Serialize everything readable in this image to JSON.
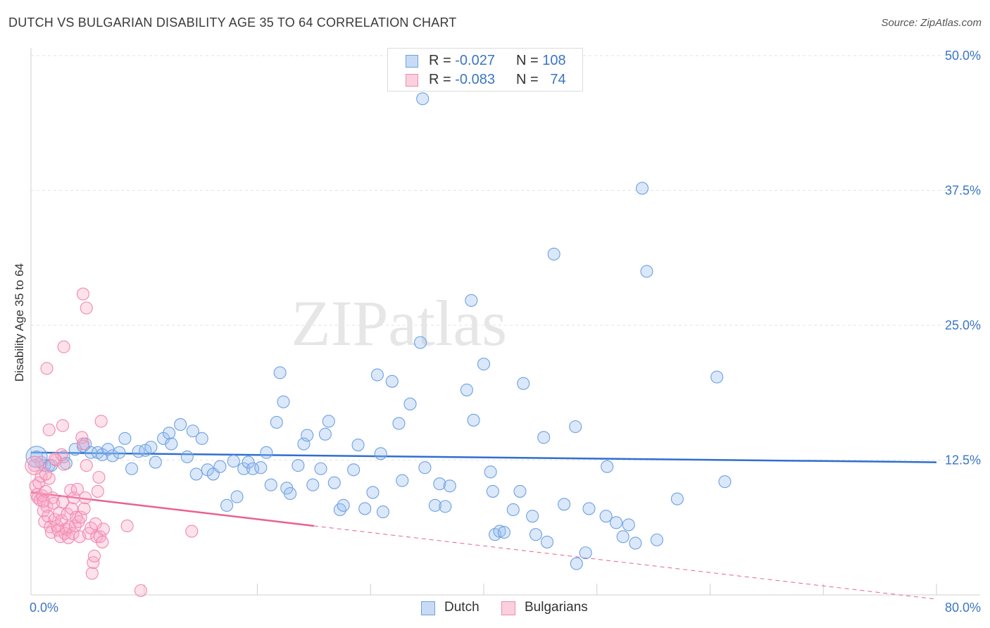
{
  "title": "DUTCH VS BULGARIAN DISABILITY AGE 35 TO 64 CORRELATION CHART",
  "source": "Source: ZipAtlas.com",
  "watermark": "ZIPatlas",
  "colors": {
    "dutch": "#6fa0e0",
    "dutch_line": "#2f6fcf",
    "bulgarians": "#f08aae",
    "bulgarians_line": "#e8628f",
    "axis_text": "#3a76c4"
  },
  "legend_top": [
    {
      "r_label": "R =",
      "r_value": "-0.027",
      "n_label": "N =",
      "n_value": "108"
    },
    {
      "r_label": "R =",
      "r_value": "-0.083",
      "n_label": "N =",
      "n_value": "74"
    }
  ],
  "legend_bottom": [
    "Dutch",
    "Bulgarians"
  ],
  "chart_data": {
    "type": "scatter",
    "title": "DUTCH VS BULGARIAN DISABILITY AGE 35 TO 64 CORRELATION CHART",
    "xlabel": "",
    "ylabel": "Disability Age 35 to 64",
    "xlim": [
      0,
      80
    ],
    "ylim": [
      0,
      50
    ],
    "x_tick_labels": [
      "0.0%",
      "80.0%"
    ],
    "y_tick_labels": [
      "12.5%",
      "25.0%",
      "37.5%",
      "50.0%"
    ],
    "y_ticks": [
      12.5,
      25.0,
      37.5,
      50.0
    ],
    "series": [
      {
        "name": "Dutch",
        "r": -0.027,
        "n": 108,
        "trend": {
          "x": [
            0,
            80
          ],
          "y": [
            13.2,
            12.3
          ]
        },
        "points": [
          [
            0.5,
            12.8
          ],
          [
            1.2,
            12.0
          ],
          [
            1.6,
            12.0
          ],
          [
            1.8,
            12.0
          ],
          [
            2.9,
            12.8
          ],
          [
            3.9,
            13.5
          ],
          [
            4.8,
            14.0
          ],
          [
            4.6,
            13.8
          ],
          [
            5.3,
            13.2
          ],
          [
            5.9,
            13.2
          ],
          [
            6.3,
            13.0
          ],
          [
            6.8,
            13.5
          ],
          [
            7.2,
            12.9
          ],
          [
            7.8,
            13.2
          ],
          [
            8.3,
            14.5
          ],
          [
            8.9,
            11.7
          ],
          [
            9.5,
            13.3
          ],
          [
            10.1,
            13.4
          ],
          [
            10.6,
            13.7
          ],
          [
            11.0,
            12.3
          ],
          [
            11.7,
            14.5
          ],
          [
            12.2,
            15.0
          ],
          [
            12.4,
            14.0
          ],
          [
            13.2,
            15.8
          ],
          [
            13.8,
            12.8
          ],
          [
            14.3,
            15.2
          ],
          [
            14.6,
            11.2
          ],
          [
            15.1,
            14.5
          ],
          [
            15.6,
            11.6
          ],
          [
            16.1,
            11.2
          ],
          [
            16.7,
            11.9
          ],
          [
            17.3,
            8.3
          ],
          [
            17.9,
            12.4
          ],
          [
            18.2,
            9.1
          ],
          [
            18.8,
            11.7
          ],
          [
            19.2,
            12.3
          ],
          [
            19.6,
            11.7
          ],
          [
            20.3,
            11.8
          ],
          [
            20.8,
            13.2
          ],
          [
            21.2,
            10.2
          ],
          [
            21.7,
            16.0
          ],
          [
            22.0,
            20.6
          ],
          [
            22.3,
            17.9
          ],
          [
            22.6,
            9.9
          ],
          [
            22.9,
            9.4
          ],
          [
            23.6,
            12.0
          ],
          [
            24.1,
            14.0
          ],
          [
            24.4,
            14.8
          ],
          [
            24.9,
            10.2
          ],
          [
            25.6,
            11.7
          ],
          [
            26.0,
            14.9
          ],
          [
            26.3,
            16.1
          ],
          [
            26.8,
            10.4
          ],
          [
            27.3,
            7.9
          ],
          [
            27.6,
            8.3
          ],
          [
            28.5,
            11.6
          ],
          [
            28.9,
            13.9
          ],
          [
            29.5,
            8.0
          ],
          [
            30.2,
            9.5
          ],
          [
            30.6,
            20.4
          ],
          [
            30.9,
            13.1
          ],
          [
            31.1,
            7.7
          ],
          [
            31.9,
            19.8
          ],
          [
            32.5,
            15.9
          ],
          [
            32.8,
            10.6
          ],
          [
            33.5,
            17.7
          ],
          [
            34.4,
            23.4
          ],
          [
            34.6,
            46.0
          ],
          [
            34.8,
            11.8
          ],
          [
            35.7,
            8.3
          ],
          [
            36.1,
            10.3
          ],
          [
            36.6,
            8.2
          ],
          [
            37.0,
            10.1
          ],
          [
            38.5,
            19.0
          ],
          [
            38.9,
            27.3
          ],
          [
            39.1,
            16.2
          ],
          [
            40.0,
            21.4
          ],
          [
            40.6,
            11.4
          ],
          [
            40.8,
            9.6
          ],
          [
            41.0,
            5.6
          ],
          [
            41.4,
            5.9
          ],
          [
            41.8,
            5.8
          ],
          [
            42.6,
            7.9
          ],
          [
            43.2,
            9.6
          ],
          [
            43.5,
            19.6
          ],
          [
            44.3,
            7.3
          ],
          [
            44.6,
            5.6
          ],
          [
            45.3,
            14.6
          ],
          [
            45.6,
            4.9
          ],
          [
            46.2,
            31.6
          ],
          [
            47.1,
            8.4
          ],
          [
            48.1,
            15.6
          ],
          [
            49.0,
            3.9
          ],
          [
            49.3,
            8.0
          ],
          [
            50.8,
            7.3
          ],
          [
            50.9,
            11.9
          ],
          [
            51.7,
            6.7
          ],
          [
            52.3,
            5.4
          ],
          [
            52.8,
            6.5
          ],
          [
            53.4,
            4.8
          ],
          [
            54.0,
            37.7
          ],
          [
            54.4,
            30.0
          ],
          [
            55.3,
            5.1
          ],
          [
            57.1,
            8.9
          ],
          [
            60.6,
            20.2
          ],
          [
            61.3,
            10.5
          ],
          [
            48.2,
            2.9
          ],
          [
            3.1,
            12.2
          ]
        ]
      },
      {
        "name": "Bulgarians",
        "r": -0.083,
        "n": 74,
        "trend": {
          "x": [
            0,
            25
          ],
          "y": [
            9.5,
            6.4
          ]
        },
        "trend_dashed": {
          "x": [
            25,
            80
          ],
          "y": [
            6.4,
            -0.4
          ]
        },
        "points": [
          [
            0.3,
            12.0
          ],
          [
            0.4,
            10.1
          ],
          [
            0.5,
            9.3
          ],
          [
            0.6,
            9.0
          ],
          [
            0.7,
            10.4
          ],
          [
            0.8,
            8.8
          ],
          [
            0.9,
            11.0
          ],
          [
            1.0,
            9.2
          ],
          [
            1.1,
            7.8
          ],
          [
            1.2,
            6.8
          ],
          [
            1.3,
            9.6
          ],
          [
            1.4,
            8.2
          ],
          [
            1.5,
            7.3
          ],
          [
            1.6,
            10.8
          ],
          [
            1.7,
            6.3
          ],
          [
            1.8,
            5.8
          ],
          [
            1.9,
            9.0
          ],
          [
            2.0,
            8.5
          ],
          [
            2.1,
            7.0
          ],
          [
            2.2,
            12.5
          ],
          [
            2.3,
            6.4
          ],
          [
            2.4,
            6.0
          ],
          [
            2.5,
            7.6
          ],
          [
            2.6,
            5.4
          ],
          [
            2.7,
            6.9
          ],
          [
            2.8,
            8.6
          ],
          [
            2.9,
            12.1
          ],
          [
            3.0,
            5.7
          ],
          [
            3.1,
            6.1
          ],
          [
            3.2,
            7.5
          ],
          [
            3.3,
            5.3
          ],
          [
            3.4,
            6.3
          ],
          [
            3.5,
            9.7
          ],
          [
            3.6,
            8.0
          ],
          [
            3.7,
            5.7
          ],
          [
            3.8,
            9.0
          ],
          [
            3.9,
            6.4
          ],
          [
            4.0,
            7.2
          ],
          [
            4.1,
            9.8
          ],
          [
            4.2,
            6.8
          ],
          [
            4.3,
            5.4
          ],
          [
            4.4,
            7.2
          ],
          [
            4.5,
            14.6
          ],
          [
            4.6,
            14.0
          ],
          [
            4.7,
            8.0
          ],
          [
            4.8,
            9.0
          ],
          [
            4.9,
            12.0
          ],
          [
            5.1,
            5.7
          ],
          [
            5.3,
            6.2
          ],
          [
            5.4,
            2.0
          ],
          [
            5.5,
            3.0
          ],
          [
            5.6,
            3.6
          ],
          [
            5.7,
            6.6
          ],
          [
            5.8,
            5.4
          ],
          [
            5.9,
            9.6
          ],
          [
            6.0,
            10.9
          ],
          [
            6.1,
            5.4
          ],
          [
            6.2,
            16.1
          ],
          [
            6.3,
            4.9
          ],
          [
            6.4,
            6.1
          ],
          [
            2.7,
            13.0
          ],
          [
            1.4,
            21.0
          ],
          [
            2.9,
            23.0
          ],
          [
            4.6,
            27.9
          ],
          [
            4.9,
            26.6
          ],
          [
            1.6,
            15.3
          ],
          [
            2.8,
            15.7
          ],
          [
            1.3,
            11.2
          ],
          [
            2.1,
            12.6
          ],
          [
            8.5,
            6.4
          ],
          [
            9.7,
            0.4
          ],
          [
            14.2,
            5.9
          ],
          [
            0.9,
            12.3
          ],
          [
            1.1,
            8.7
          ]
        ]
      }
    ]
  }
}
